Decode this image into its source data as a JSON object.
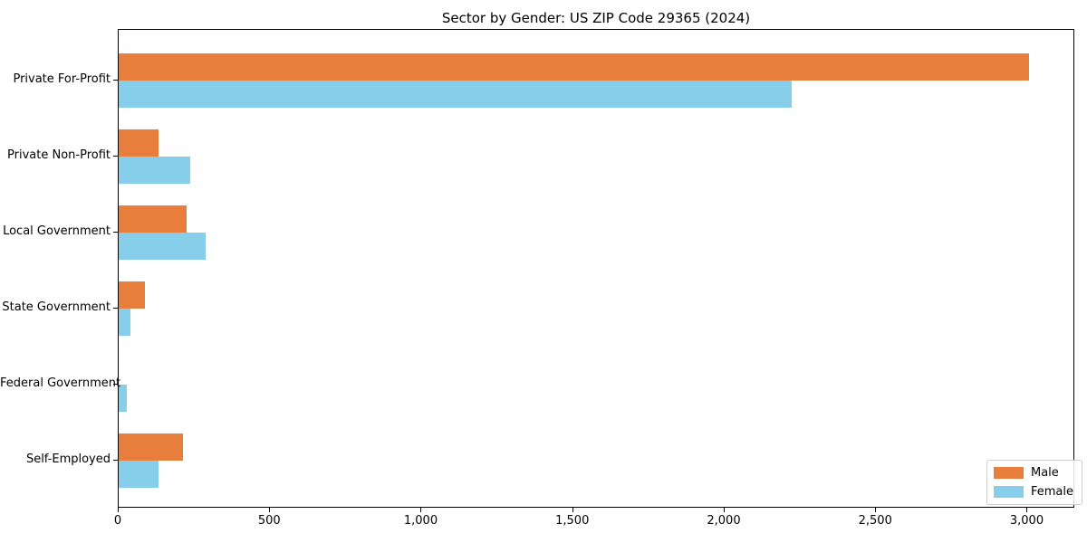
{
  "chart_data": {
    "type": "bar",
    "orientation": "horizontal",
    "title": "Sector by Gender: US ZIP Code 29365 (2024)",
    "xlabel": "",
    "ylabel": "",
    "categories": [
      "Private For-Profit",
      "Private Non-Profit",
      "Local Government",
      "State Government",
      "Federal Government",
      "Self-Employed"
    ],
    "series": [
      {
        "name": "Male",
        "color": "#E87E3C",
        "values": [
          3005,
          133,
          225,
          88,
          0,
          213
        ]
      },
      {
        "name": "Female",
        "color": "#87CEEB",
        "values": [
          2222,
          237,
          288,
          38,
          26,
          133
        ]
      }
    ],
    "xlim": [
      0,
      3157
    ],
    "x_ticks": [
      0,
      500,
      1000,
      1500,
      2000,
      2500,
      3000
    ],
    "x_tick_labels": [
      "0",
      "500",
      "1,000",
      "1,500",
      "2,000",
      "2,500",
      "3,000"
    ],
    "grid": "off",
    "legend_position": "lower right"
  }
}
